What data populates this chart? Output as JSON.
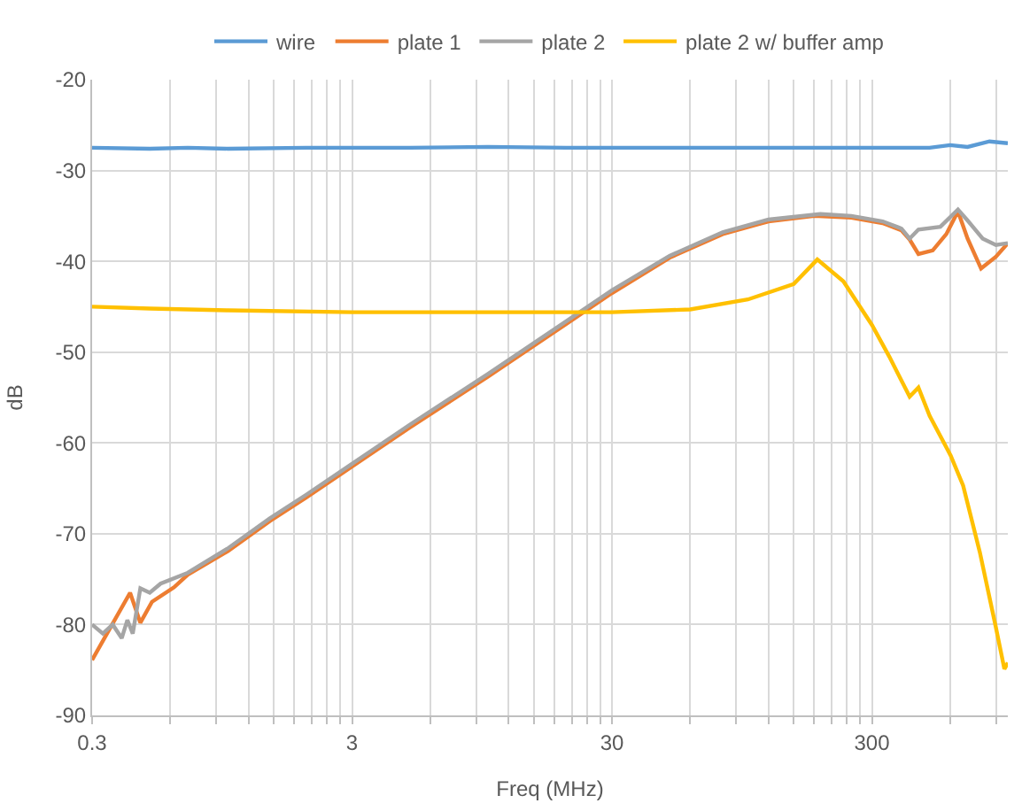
{
  "chart_data": {
    "type": "line",
    "xlabel": "Freq (MHz)",
    "ylabel": "dB",
    "log": "x",
    "grid": true,
    "legend": "top",
    "marker": "none",
    "line_style": "solid",
    "xlim": [
      0.3,
      1000
    ],
    "ylim": [
      -90,
      -20
    ],
    "xticks": [
      0.3,
      {
        "value": 0.6,
        "label": null
      },
      {
        "value": 0.9,
        "label": null
      },
      {
        "value": 1.2,
        "label": null
      },
      {
        "value": 1.5,
        "label": null
      },
      {
        "value": 1.8,
        "label": null
      },
      {
        "value": 2.1,
        "label": null
      },
      {
        "value": 2.4,
        "label": null
      },
      {
        "value": 2.7,
        "label": null
      },
      3,
      {
        "value": 6,
        "label": null
      },
      {
        "value": 9,
        "label": null
      },
      {
        "value": 12,
        "label": null
      },
      {
        "value": 15,
        "label": null
      },
      {
        "value": 18,
        "label": null
      },
      {
        "value": 21,
        "label": null
      },
      {
        "value": 24,
        "label": null
      },
      {
        "value": 27,
        "label": null
      },
      30,
      {
        "value": 60,
        "label": null
      },
      {
        "value": 90,
        "label": null
      },
      {
        "value": 120,
        "label": null
      },
      {
        "value": 150,
        "label": null
      },
      {
        "value": 180,
        "label": null
      },
      {
        "value": 210,
        "label": null
      },
      {
        "value": 240,
        "label": null
      },
      {
        "value": 270,
        "label": null
      },
      300,
      {
        "value": 600,
        "label": null
      },
      {
        "value": 900,
        "label": null
      }
    ],
    "yticks": [
      -90,
      -80,
      -70,
      -60,
      -50,
      -40,
      -30,
      -20
    ],
    "series": [
      {
        "name": "wire",
        "color": "#5b9bd5",
        "x": [
          0.3,
          0.5,
          0.7,
          1,
          2,
          3,
          5,
          10,
          20,
          30,
          60,
          100,
          200,
          300,
          500,
          600,
          700,
          850,
          1000
        ],
        "values": [
          -27.5,
          -27.6,
          -27.5,
          -27.6,
          -27.5,
          -27.5,
          -27.5,
          -27.4,
          -27.5,
          -27.5,
          -27.5,
          -27.5,
          -27.5,
          -27.5,
          -27.5,
          -27.2,
          -27.4,
          -26.8,
          -27
        ]
      },
      {
        "name": "plate 1",
        "color": "#ed7d31",
        "x": [
          0.3,
          0.35,
          0.42,
          0.46,
          0.51,
          0.62,
          0.7,
          1,
          1.45,
          2,
          3,
          5,
          10,
          20,
          30,
          50,
          80,
          120,
          180,
          250,
          330,
          390,
          419,
          453,
          514,
          580,
          643,
          700,
          789,
          900,
          1000
        ],
        "values": [
          -83.9,
          -80.5,
          -76.5,
          -79.8,
          -77.5,
          -75.9,
          -74.5,
          -71.9,
          -68.6,
          -66,
          -62.6,
          -58.3,
          -52.7,
          -46.9,
          -43.5,
          -39.6,
          -37,
          -35.6,
          -35,
          -35.2,
          -35.8,
          -36.6,
          -37.6,
          -39.2,
          -38.8,
          -37,
          -34.5,
          -37.5,
          -40.8,
          -39.5,
          -38
        ]
      },
      {
        "name": "plate 2",
        "color": "#a5a5a5",
        "x": [
          0.3,
          0.33,
          0.36,
          0.39,
          0.41,
          0.43,
          0.46,
          0.5,
          0.55,
          0.7,
          1,
          1.45,
          2,
          3,
          5,
          10,
          20,
          30,
          50,
          80,
          120,
          190,
          250,
          330,
          390,
          419,
          453,
          550,
          643,
          700,
          800,
          900,
          1000
        ],
        "values": [
          -80,
          -81,
          -80,
          -81.5,
          -79.5,
          -81,
          -76,
          -76.5,
          -75.5,
          -74.3,
          -71.6,
          -68.3,
          -65.7,
          -62.3,
          -58,
          -52.4,
          -46.6,
          -43.2,
          -39.4,
          -36.8,
          -35.4,
          -34.8,
          -35,
          -35.6,
          -36.4,
          -37.5,
          -36.5,
          -36.2,
          -34.3,
          -35.5,
          -37.5,
          -38.2,
          -38
        ]
      },
      {
        "name": "plate 2 w/ buffer amp",
        "color": "#ffc000",
        "x": [
          0.3,
          0.5,
          1,
          3,
          10,
          30,
          60,
          100,
          150,
          185,
          233,
          300,
          350,
          419,
          453,
          500,
          603,
          673,
          780,
          898,
          970,
          1000
        ],
        "values": [
          -45,
          -45.2,
          -45.4,
          -45.6,
          -45.6,
          -45.6,
          -45.3,
          -44.2,
          -42.5,
          -39.8,
          -42.2,
          -47,
          -50.5,
          -54.9,
          -53.9,
          -57,
          -61.4,
          -64.7,
          -72,
          -80.2,
          -84.9,
          -84.2
        ]
      }
    ]
  }
}
